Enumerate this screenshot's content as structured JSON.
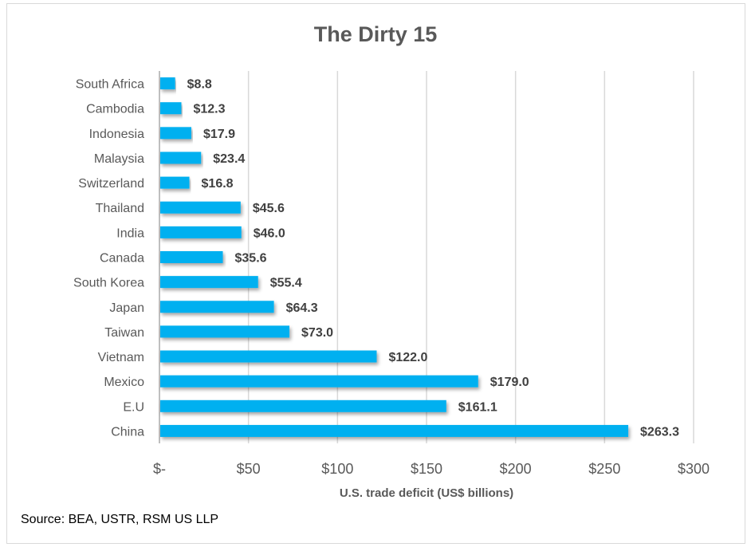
{
  "chart_data": {
    "type": "bar",
    "orientation": "horizontal",
    "title": "The Dirty 15",
    "xlabel": "U.S. trade deficit (US$ billions)",
    "ylabel": "",
    "categories": [
      "South Africa",
      "Cambodia",
      "Indonesia",
      "Malaysia",
      "Switzerland",
      "Thailand",
      "India",
      "Canada",
      "South Korea",
      "Japan",
      "Taiwan",
      "Vietnam",
      "Mexico",
      "E.U",
      "China"
    ],
    "values": [
      8.8,
      12.3,
      17.9,
      23.4,
      16.8,
      45.6,
      46.0,
      35.6,
      55.4,
      64.3,
      73.0,
      122.0,
      179.0,
      161.1,
      263.3
    ],
    "data_labels": [
      "$8.8",
      "$12.3",
      "$17.9",
      "$23.4",
      "$16.8",
      "$45.6",
      "$46.0",
      "$35.6",
      "$55.4",
      "$64.3",
      "$73.0",
      "$122.0",
      "$179.0",
      "$161.1",
      "$263.3"
    ],
    "xlim": [
      0,
      300
    ],
    "xticks": [
      0,
      50,
      100,
      150,
      200,
      250,
      300
    ],
    "xtick_labels": [
      "$-",
      "$50",
      "$100",
      "$150",
      "$200",
      "$250",
      "$300"
    ],
    "grid": true,
    "legend": "none",
    "bar_color": "#00B0F0"
  },
  "source": "Source: BEA, USTR, RSM US LLP"
}
